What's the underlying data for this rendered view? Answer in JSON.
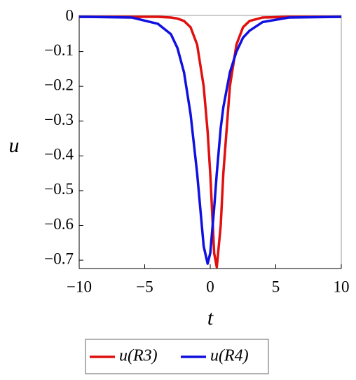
{
  "chart_data": {
    "type": "line",
    "x_label": "t",
    "y_label": "u",
    "x": [
      -10,
      -6,
      -4,
      -3,
      -2.5,
      -2,
      -1.5,
      -1,
      -0.5,
      -0.2,
      0,
      0.3,
      0.5,
      0.8,
      1,
      1.5,
      2,
      2.5,
      3,
      4,
      6,
      10
    ],
    "series": [
      {
        "name": "u(R3)",
        "color": "#e01010",
        "values": [
          0,
          0,
          0,
          -0.002,
          -0.005,
          -0.012,
          -0.03,
          -0.08,
          -0.2,
          -0.33,
          -0.45,
          -0.68,
          -0.72,
          -0.6,
          -0.45,
          -0.2,
          -0.08,
          -0.03,
          -0.012,
          -0.002,
          0,
          0
        ]
      },
      {
        "name": "u(R4)",
        "color": "#1010e0",
        "values": [
          0,
          -0.002,
          -0.02,
          -0.05,
          -0.09,
          -0.16,
          -0.28,
          -0.45,
          -0.66,
          -0.71,
          -0.68,
          -0.55,
          -0.45,
          -0.32,
          -0.26,
          -0.16,
          -0.1,
          -0.06,
          -0.04,
          -0.015,
          -0.002,
          0
        ]
      }
    ],
    "xlim": [
      -10,
      10
    ],
    "xticks": [
      {
        "value": -10,
        "label": "−10"
      },
      {
        "value": -5,
        "label": "−5"
      },
      0,
      5,
      10
    ],
    "ylim": [
      -0.724,
      0.004
    ],
    "yticks": [
      0,
      {
        "value": -0.1,
        "label": "−0.1"
      },
      {
        "value": -0.2,
        "label": "−0.2"
      },
      {
        "value": -0.3,
        "label": "−0.3"
      },
      {
        "value": -0.4,
        "label": "−0.4"
      },
      {
        "value": -0.5,
        "label": "−0.5"
      },
      {
        "value": -0.6,
        "label": "−0.6"
      },
      {
        "value": -0.7,
        "label": "−0.7"
      }
    ],
    "legend": "bottom"
  }
}
